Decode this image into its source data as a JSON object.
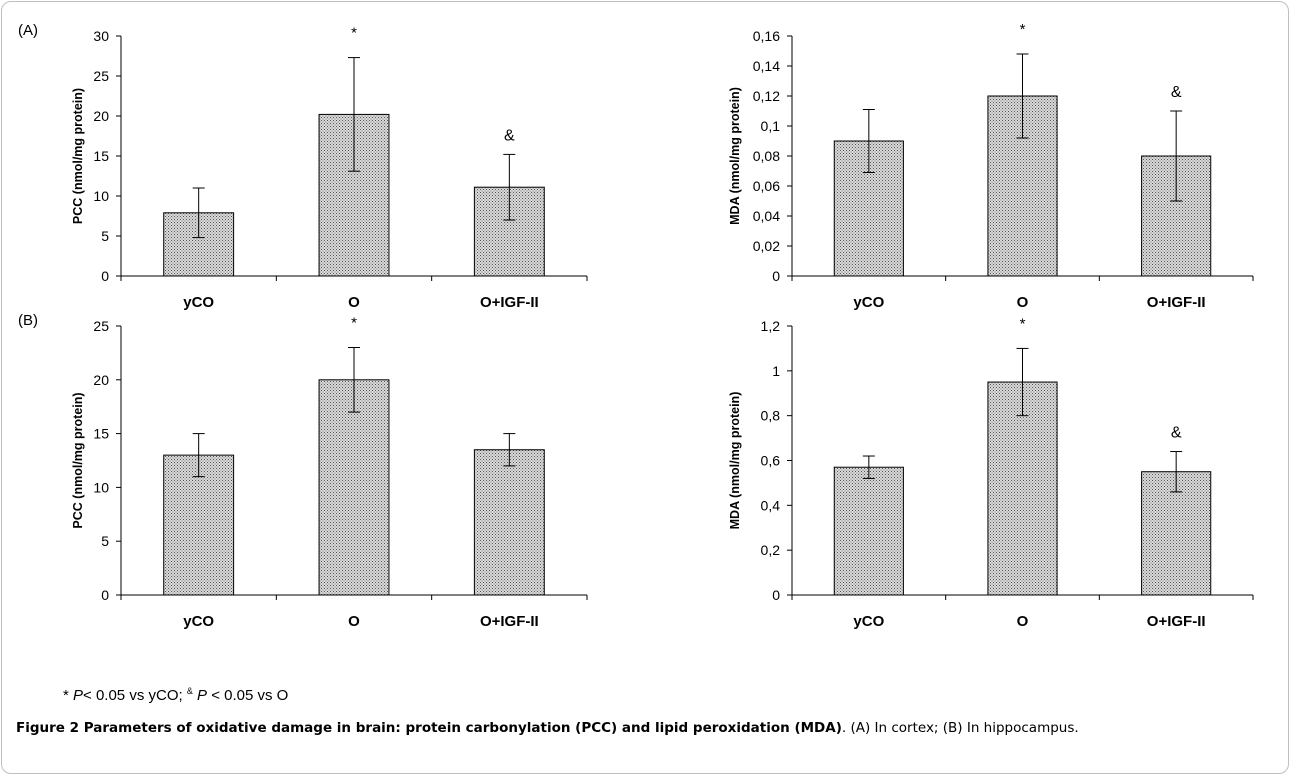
{
  "panels": {
    "a_label": "(A)",
    "b_label": "(B)"
  },
  "chart_data": [
    {
      "type": "bar",
      "panel": "A",
      "categories": [
        "yCO",
        "O",
        "O+IGF-II"
      ],
      "values": [
        7.9,
        20.2,
        11.1
      ],
      "errors": [
        3.1,
        7.1,
        4.1
      ],
      "annotations": [
        "",
        "*",
        "&"
      ],
      "xlabel": "",
      "ylabel": "PCC (nmol/mg protein)",
      "ylim": [
        0,
        30
      ],
      "yticks": [
        "0",
        "5",
        "10",
        "15",
        "20",
        "25",
        "30"
      ],
      "grid": false
    },
    {
      "type": "bar",
      "panel": "A",
      "categories": [
        "yCO",
        "O",
        "O+IGF-II"
      ],
      "values": [
        0.09,
        0.12,
        0.08
      ],
      "errors": [
        0.021,
        0.028,
        0.03
      ],
      "annotations": [
        "",
        "*",
        "&"
      ],
      "xlabel": "",
      "ylabel": "MDA (nmol/mg protein)",
      "ylim": [
        0,
        0.16
      ],
      "yticks": [
        "0",
        "0,02",
        "0,04",
        "0,06",
        "0,08",
        "0,1",
        "0,12",
        "0,14",
        "0,16"
      ],
      "grid": false
    },
    {
      "type": "bar",
      "panel": "B",
      "categories": [
        "yCO",
        "O",
        "O+IGF-II"
      ],
      "values": [
        13.0,
        20.0,
        13.5
      ],
      "errors": [
        2.0,
        3.0,
        1.5
      ],
      "annotations": [
        "",
        "*",
        ""
      ],
      "xlabel": "",
      "ylabel": "PCC (nmol/mg protein)",
      "ylim": [
        0,
        25
      ],
      "yticks": [
        "0",
        "5",
        "10",
        "15",
        "20",
        "25"
      ],
      "grid": false
    },
    {
      "type": "bar",
      "panel": "B",
      "categories": [
        "yCO",
        "O",
        "O+IGF-II"
      ],
      "values": [
        0.57,
        0.95,
        0.55
      ],
      "errors": [
        0.05,
        0.15,
        0.09
      ],
      "annotations": [
        "",
        "*",
        "&"
      ],
      "xlabel": "",
      "ylabel": "MDA (nmol/mg protein)",
      "ylim": [
        0,
        1.2
      ],
      "yticks": [
        "0",
        "0,2",
        "0,4",
        "0,6",
        "0,8",
        "1",
        "1,2"
      ],
      "grid": false
    }
  ],
  "footnote": {
    "star": "* ",
    "p1": "P",
    "t1": "< 0.05 vs yCO; ",
    "amp": "&",
    "p2": " P",
    "t2": " < 0.05 vs O"
  },
  "caption": {
    "bold": "Figure 2 Parameters of oxidative damage in brain: protein carbonylation (PCC) and lipid peroxidation (MDA)",
    "rest": ". (A) In cortex; (B) In hippocampus."
  },
  "colors": {
    "bar_fill": "#d9d9d9",
    "bar_dots": "#555555",
    "axis": "#000000"
  }
}
